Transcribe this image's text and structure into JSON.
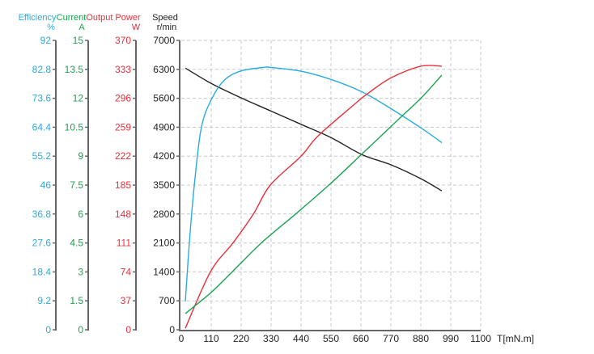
{
  "colors": {
    "efficiency": "#29abe2",
    "current": "#1aa350",
    "output_power": "#e8303c",
    "speed": "#222222",
    "grid": "#c8c8c8",
    "axis": "#666666"
  },
  "chart_data": {
    "type": "line",
    "title": "",
    "xlabel": "T[mN.m]",
    "x_ticks": [
      0,
      110,
      220,
      330,
      440,
      550,
      660,
      770,
      880,
      990,
      1100
    ],
    "xlim": [
      0,
      1100
    ],
    "grid": true,
    "legend": "none (axis titles colored per series)",
    "axes": [
      {
        "key": "efficiency",
        "title": "Efficiency",
        "unit": "%",
        "ticks": [
          "0",
          "9.2",
          "18.4",
          "27.6",
          "36.8",
          "46",
          "55.2",
          "64.4",
          "73.6",
          "82.8",
          "92"
        ],
        "range": [
          0,
          92
        ]
      },
      {
        "key": "current",
        "title": "Current",
        "unit": "A",
        "ticks": [
          "0",
          "1.5",
          "3",
          "4.5",
          "6",
          "7.5",
          "9",
          "10.5",
          "12",
          "13.5",
          "15"
        ],
        "range": [
          0,
          15
        ]
      },
      {
        "key": "output_power",
        "title": "Output Power",
        "unit": "W",
        "ticks": [
          "0",
          "37",
          "74",
          "111",
          "148",
          "185",
          "222",
          "259",
          "296",
          "333",
          "370"
        ],
        "range": [
          0,
          370
        ]
      },
      {
        "key": "speed",
        "title": "Speed",
        "unit": "r/min",
        "ticks": [
          "0",
          "700",
          "1400",
          "2100",
          "2800",
          "3500",
          "4200",
          "4900",
          "5600",
          "6300",
          "7000"
        ],
        "range": [
          0,
          7000
        ]
      }
    ],
    "series": [
      {
        "name": "Speed",
        "axis": "speed",
        "unit": "r/min",
        "x": [
          15,
          110,
          220,
          330,
          440,
          550,
          663,
          770,
          880,
          957
        ],
        "values": [
          6330,
          5960,
          5610,
          5290,
          4970,
          4650,
          4240,
          3990,
          3655,
          3360
        ]
      },
      {
        "name": "Efficiency",
        "axis": "efficiency",
        "unit": "%",
        "x": [
          15,
          30,
          48,
          74,
          113,
          160,
          220,
          300,
          330,
          440,
          550,
          660,
          752,
          880,
          957
        ],
        "values": [
          9,
          28,
          46,
          64.4,
          73.6,
          79.5,
          82.3,
          83.4,
          83.4,
          82.2,
          79.6,
          75.8,
          71.3,
          64.2,
          59.5
        ]
      },
      {
        "name": "Output Power",
        "axis": "output_power",
        "unit": "W",
        "x": [
          15,
          107,
          190,
          265,
          327,
          440,
          503,
          642,
          681,
          770,
          880,
          957
        ],
        "values": [
          2,
          74,
          111,
          148,
          185,
          222,
          248,
          290,
          301,
          322,
          337,
          337
        ]
      },
      {
        "name": "Current",
        "axis": "current",
        "unit": "A",
        "x": [
          15,
          107,
          187,
          294,
          420,
          550,
          663,
          790,
          880,
          957
        ],
        "values": [
          0.84,
          1.9,
          3,
          4.5,
          6,
          7.6,
          9.1,
          10.8,
          12,
          13.2
        ]
      }
    ]
  }
}
